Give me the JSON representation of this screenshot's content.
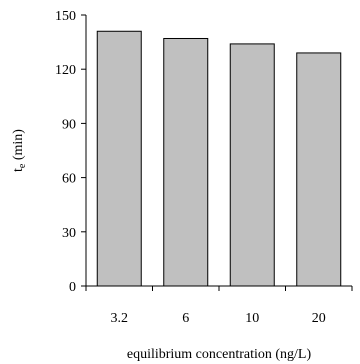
{
  "chart_data": {
    "type": "bar",
    "categories": [
      "3.2",
      "6",
      "10",
      "20"
    ],
    "values": [
      141,
      137,
      134,
      129
    ],
    "ylim": [
      0,
      150
    ],
    "yticks": [
      0,
      30,
      60,
      90,
      120,
      150
    ],
    "xlabel": "equilibrium concentration (ng/L)",
    "ylabel": {
      "main": "t",
      "sub": "e",
      "unit": " (min)"
    },
    "grid": false,
    "colors": {
      "bar": "#c0c0c0",
      "stroke": "#000000"
    }
  }
}
